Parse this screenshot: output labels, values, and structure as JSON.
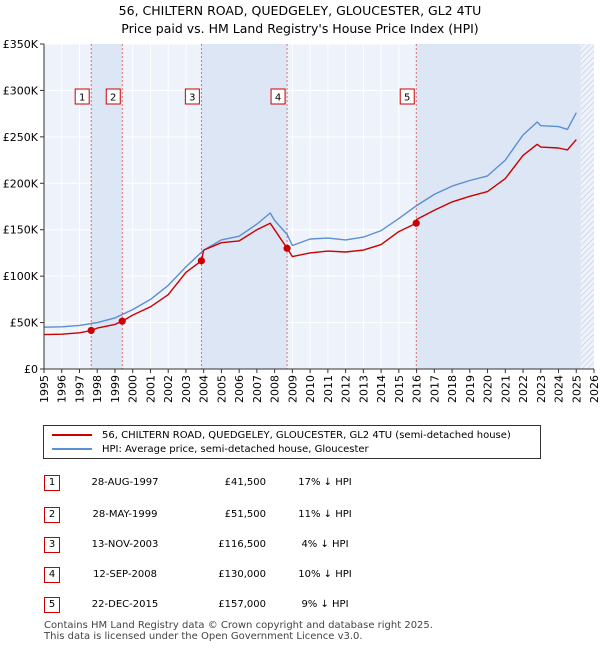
{
  "title": {
    "line1": "56, CHILTERN ROAD, QUEDGELEY, GLOUCESTER, GL2 4TU",
    "line2": "Price paid vs. HM Land Registry's House Price Index (HPI)"
  },
  "legend": {
    "property": "56, CHILTERN ROAD, QUEDGELEY, GLOUCESTER, GL2 4TU (semi-detached house)",
    "hpi": "HPI: Average price, semi-detached house, Gloucester"
  },
  "colors": {
    "property_line": "#cc0000",
    "hpi_line": "#5b8fd0",
    "shade": "#dde6f5",
    "grid": "#ffffff",
    "plot_bg": "#eef2fa"
  },
  "sales": [
    {
      "num": "1",
      "date": "28-AUG-1997",
      "price": "£41,500",
      "hpi": "17% ↓ HPI"
    },
    {
      "num": "2",
      "date": "28-MAY-1999",
      "price": "£51,500",
      "hpi": "11% ↓ HPI"
    },
    {
      "num": "3",
      "date": "13-NOV-2003",
      "price": "£116,500",
      "hpi": "4% ↓ HPI"
    },
    {
      "num": "4",
      "date": "12-SEP-2008",
      "price": "£130,000",
      "hpi": "10% ↓ HPI"
    },
    {
      "num": "5",
      "date": "22-DEC-2015",
      "price": "£157,000",
      "hpi": "9% ↓ HPI"
    }
  ],
  "footer": {
    "line1": "Contains HM Land Registry data © Crown copyright and database right 2025.",
    "line2": "This data is licensed under the Open Government Licence v3.0."
  },
  "chart_data": {
    "type": "line",
    "title": "56, CHILTERN ROAD, QUEDGELEY, GLOUCESTER, GL2 4TU — Price paid vs. HM Land Registry's House Price Index (HPI)",
    "xlim": [
      1995,
      2026
    ],
    "ylim": [
      0,
      350000
    ],
    "x_ticks": [
      "1995",
      "1996",
      "1997",
      "1998",
      "1999",
      "2000",
      "2001",
      "2002",
      "2003",
      "2004",
      "2005",
      "2006",
      "2007",
      "2008",
      "2009",
      "2010",
      "2011",
      "2012",
      "2013",
      "2014",
      "2015",
      "2016",
      "2017",
      "2018",
      "2019",
      "2020",
      "2021",
      "2022",
      "2023",
      "2024",
      "2025",
      "2026"
    ],
    "y_ticks": [
      {
        "value": 0,
        "label": "£0"
      },
      {
        "value": 50000,
        "label": "£50K"
      },
      {
        "value": 100000,
        "label": "£100K"
      },
      {
        "value": 150000,
        "label": "£150K"
      },
      {
        "value": 200000,
        "label": "£200K"
      },
      {
        "value": 250000,
        "label": "£250K"
      },
      {
        "value": 300000,
        "label": "£300K"
      },
      {
        "value": 350000,
        "label": "£350K"
      }
    ],
    "grid": true,
    "shaded_ranges": [
      [
        1997.66,
        1999.41
      ],
      [
        2003.87,
        2008.7
      ],
      [
        2015.98,
        2025.25
      ]
    ],
    "future_hatch_from": 2025.25,
    "sale_points": [
      {
        "label": "1",
        "x": 1997.66,
        "y": 41500
      },
      {
        "label": "2",
        "x": 1999.41,
        "y": 51500
      },
      {
        "label": "3",
        "x": 2003.87,
        "y": 116500
      },
      {
        "label": "4",
        "x": 2008.7,
        "y": 130000
      },
      {
        "label": "5",
        "x": 2015.98,
        "y": 157000
      }
    ],
    "series": [
      {
        "name": "56, CHILTERN ROAD, QUEDGELEY, GLOUCESTER, GL2 4TU (semi-detached house)",
        "x": [
          1995,
          1996,
          1997,
          1997.66,
          1998,
          1999,
          1999.41,
          2000,
          2001,
          2002,
          2003,
          2003.87,
          2004,
          2005,
          2006,
          2007,
          2007.75,
          2008,
          2008.7,
          2009,
          2010,
          2011,
          2012,
          2013,
          2014,
          2015,
          2015.98,
          2016,
          2017,
          2018,
          2019,
          2020,
          2021,
          2022,
          2022.8,
          2023,
          2024,
          2024.5,
          2025
        ],
        "y": [
          37000,
          37500,
          39000,
          41500,
          44000,
          48000,
          51500,
          58000,
          67000,
          80000,
          104000,
          116500,
          128000,
          136000,
          138000,
          150000,
          157000,
          150000,
          130000,
          121000,
          125000,
          127000,
          126000,
          128000,
          134000,
          148000,
          157000,
          161000,
          171000,
          180000,
          186000,
          191000,
          205000,
          230000,
          242000,
          239000,
          238000,
          236000,
          247000
        ]
      },
      {
        "name": "HPI: Average price, semi-detached house, Gloucester",
        "x": [
          1995,
          1996,
          1997,
          1998,
          1999,
          2000,
          2001,
          2002,
          2003,
          2004,
          2005,
          2006,
          2007,
          2007.75,
          2008,
          2008.7,
          2009,
          2010,
          2011,
          2012,
          2013,
          2014,
          2015,
          2016,
          2017,
          2018,
          2019,
          2020,
          2021,
          2022,
          2022.8,
          2023,
          2024,
          2024.5,
          2025
        ],
        "y": [
          45000,
          45500,
          47000,
          50000,
          55000,
          64000,
          75000,
          90000,
          110000,
          128000,
          139000,
          143000,
          156000,
          168000,
          160000,
          145000,
          133000,
          140000,
          141000,
          139000,
          142000,
          149000,
          162000,
          176000,
          188000,
          197000,
          203000,
          208000,
          225000,
          252000,
          266000,
          262000,
          261000,
          258000,
          276000
        ]
      }
    ]
  }
}
